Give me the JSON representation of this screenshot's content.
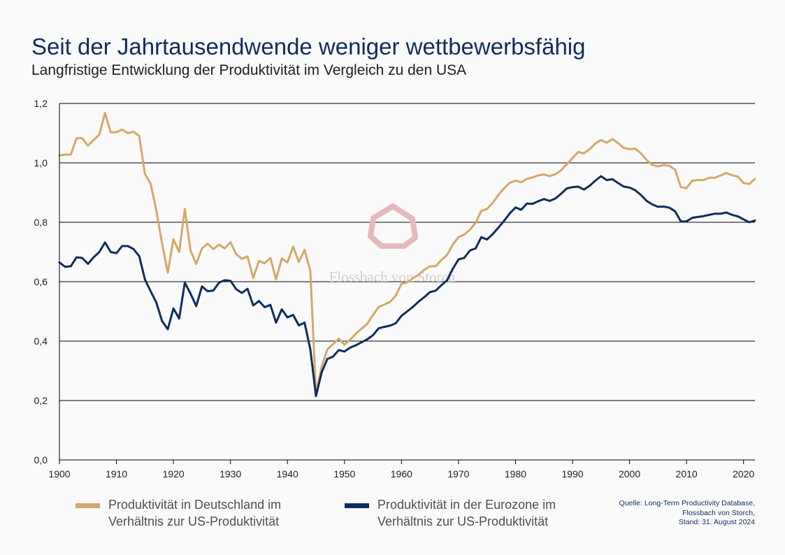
{
  "title": "Seit der Jahrtausendwende weniger wettbewerbsfähig",
  "subtitle": "Langfristige Entwicklung der Produktivität im Vergleich zu den USA",
  "watermark": "Flossbach von Storch",
  "colors": {
    "germany": "#d3a86a",
    "eurozone": "#0e2d5c",
    "title": "#0e2d5c"
  },
  "legend": [
    {
      "line1": "Produktivität in Deutschland im",
      "line2": "Verhältnis zur US-Produktivität"
    },
    {
      "line1": "Produktivität in der Eurozone im",
      "line2": "Verhältnis zur US-Produktivität"
    }
  ],
  "source": [
    "Quelle: Long-Term Productivity Database,",
    "Flossbach von Storch,",
    "Stand: 31. August 2024"
  ],
  "chart_data": {
    "type": "line",
    "title": "Seit der Jahrtausendwende weniger wettbewerbsfähig",
    "subtitle": "Langfristige Entwicklung der Produktivität im Vergleich zu den USA",
    "xlim": [
      1900,
      2022
    ],
    "ylim": [
      0,
      1.2
    ],
    "x_ticks": [
      1900,
      1910,
      1920,
      1930,
      1940,
      1950,
      1960,
      1970,
      1980,
      1990,
      2000,
      2010,
      2020
    ],
    "y_ticks": [
      "0,0",
      "0,2",
      "0,4",
      "0,6",
      "0,8",
      "1,0",
      "1,2"
    ],
    "grid": "horizontal",
    "legend_position": "bottom",
    "x_start": 1900,
    "series": [
      {
        "name": "Produktivität in Deutschland im Verhältnis zur US-Produktivität",
        "color": "#d3a86a",
        "values": [
          1.025,
          1.028,
          1.028,
          1.083,
          1.083,
          1.058,
          1.077,
          1.095,
          1.168,
          1.103,
          1.103,
          1.112,
          1.1,
          1.105,
          1.09,
          0.963,
          0.93,
          0.84,
          0.73,
          0.63,
          0.743,
          0.7,
          0.845,
          0.705,
          0.66,
          0.712,
          0.728,
          0.71,
          0.725,
          0.712,
          0.733,
          0.693,
          0.677,
          0.685,
          0.613,
          0.67,
          0.662,
          0.68,
          0.608,
          0.678,
          0.665,
          0.718,
          0.666,
          0.707,
          0.637,
          0.225,
          0.315,
          0.372,
          0.39,
          0.408,
          0.388,
          0.405,
          0.425,
          0.442,
          0.458,
          0.488,
          0.515,
          0.523,
          0.532,
          0.553,
          0.593,
          0.598,
          0.612,
          0.623,
          0.64,
          0.652,
          0.652,
          0.673,
          0.69,
          0.725,
          0.75,
          0.758,
          0.775,
          0.798,
          0.838,
          0.845,
          0.865,
          0.892,
          0.914,
          0.933,
          0.94,
          0.935,
          0.946,
          0.951,
          0.958,
          0.961,
          0.955,
          0.962,
          0.975,
          0.996,
          1.016,
          1.037,
          1.032,
          1.046,
          1.065,
          1.077,
          1.068,
          1.08,
          1.066,
          1.05,
          1.046,
          1.048,
          1.032,
          1.01,
          0.993,
          0.988,
          0.993,
          0.99,
          0.977,
          0.918,
          0.915,
          0.94,
          0.942,
          0.942,
          0.95,
          0.95,
          0.958,
          0.966,
          0.958,
          0.954,
          0.932,
          0.929,
          0.946
        ]
      },
      {
        "name": "Produktivität in der Eurozone im Verhältnis zur US-Produktivität",
        "color": "#0e2d5c",
        "values": [
          0.665,
          0.65,
          0.652,
          0.682,
          0.68,
          0.66,
          0.682,
          0.7,
          0.732,
          0.7,
          0.696,
          0.72,
          0.72,
          0.71,
          0.686,
          0.608,
          0.568,
          0.53,
          0.468,
          0.44,
          0.51,
          0.476,
          0.597,
          0.56,
          0.518,
          0.584,
          0.568,
          0.57,
          0.597,
          0.605,
          0.603,
          0.575,
          0.562,
          0.576,
          0.52,
          0.535,
          0.514,
          0.522,
          0.462,
          0.507,
          0.48,
          0.488,
          0.453,
          0.462,
          0.373,
          0.215,
          0.295,
          0.34,
          0.348,
          0.37,
          0.365,
          0.378,
          0.386,
          0.396,
          0.406,
          0.42,
          0.443,
          0.448,
          0.452,
          0.46,
          0.485,
          0.5,
          0.515,
          0.533,
          0.548,
          0.565,
          0.57,
          0.588,
          0.605,
          0.643,
          0.675,
          0.68,
          0.705,
          0.712,
          0.75,
          0.742,
          0.76,
          0.782,
          0.805,
          0.83,
          0.85,
          0.842,
          0.863,
          0.862,
          0.871,
          0.878,
          0.872,
          0.88,
          0.896,
          0.914,
          0.918,
          0.92,
          0.91,
          0.923,
          0.94,
          0.955,
          0.942,
          0.945,
          0.932,
          0.92,
          0.917,
          0.908,
          0.892,
          0.872,
          0.86,
          0.852,
          0.853,
          0.849,
          0.837,
          0.803,
          0.803,
          0.815,
          0.818,
          0.821,
          0.825,
          0.829,
          0.829,
          0.833,
          0.825,
          0.82,
          0.81,
          0.8,
          0.806
        ]
      }
    ]
  }
}
